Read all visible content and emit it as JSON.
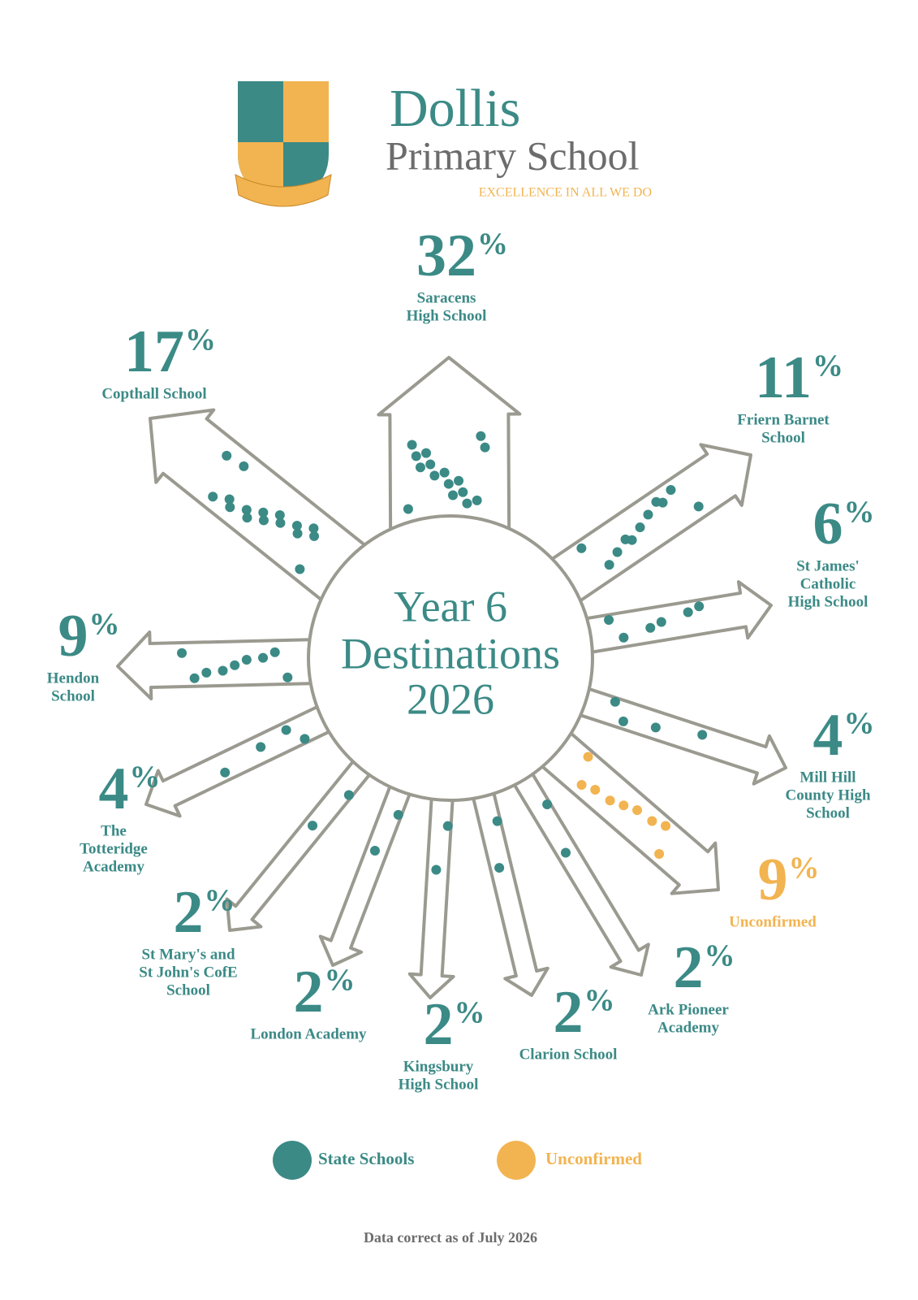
{
  "header": {
    "title": "Dollis",
    "subtitle": "Primary School",
    "motto": "EXCELLENCE IN ALL WE DO"
  },
  "center": [
    "Year 6",
    "Destinations",
    "2026"
  ],
  "unit": "%",
  "destinations": [
    {
      "value": 32,
      "name": [
        "Saracens",
        "High School"
      ],
      "group": 0
    },
    {
      "value": 17,
      "name": [
        "Copthall School"
      ],
      "group": 0
    },
    {
      "value": 11,
      "name": [
        "Friern Barnet",
        "School"
      ],
      "group": 0
    },
    {
      "value": 6,
      "name": [
        "St James'",
        "Catholic",
        "High School"
      ],
      "group": 0
    },
    {
      "value": 4,
      "name": [
        "Mill Hill",
        "County High",
        "School"
      ],
      "group": 0
    },
    {
      "value": 9,
      "name": [
        "Unconfirmed"
      ],
      "group": 1
    },
    {
      "value": 2,
      "name": [
        "Ark Pioneer",
        "Academy"
      ],
      "group": 0
    },
    {
      "value": 2,
      "name": [
        "Clarion School"
      ],
      "group": 0
    },
    {
      "value": 2,
      "name": [
        "Kingsbury",
        "High School"
      ],
      "group": 0
    },
    {
      "value": 2,
      "name": [
        "London Academy"
      ],
      "group": 0
    },
    {
      "value": 2,
      "name": [
        "St Mary's and",
        "St John's CofE",
        "School"
      ],
      "group": 0
    },
    {
      "value": 4,
      "name": [
        "The",
        "Totteridge",
        "Academy"
      ],
      "group": 0
    },
    {
      "value": 9,
      "name": [
        "Hendon",
        "School"
      ],
      "group": 0
    }
  ],
  "legend": [
    {
      "label": "State Schools",
      "color": "#3b8a86"
    },
    {
      "label": "Unconfirmed",
      "color": "#f2b451"
    }
  ],
  "footer": "Data correct as of July 2026"
}
